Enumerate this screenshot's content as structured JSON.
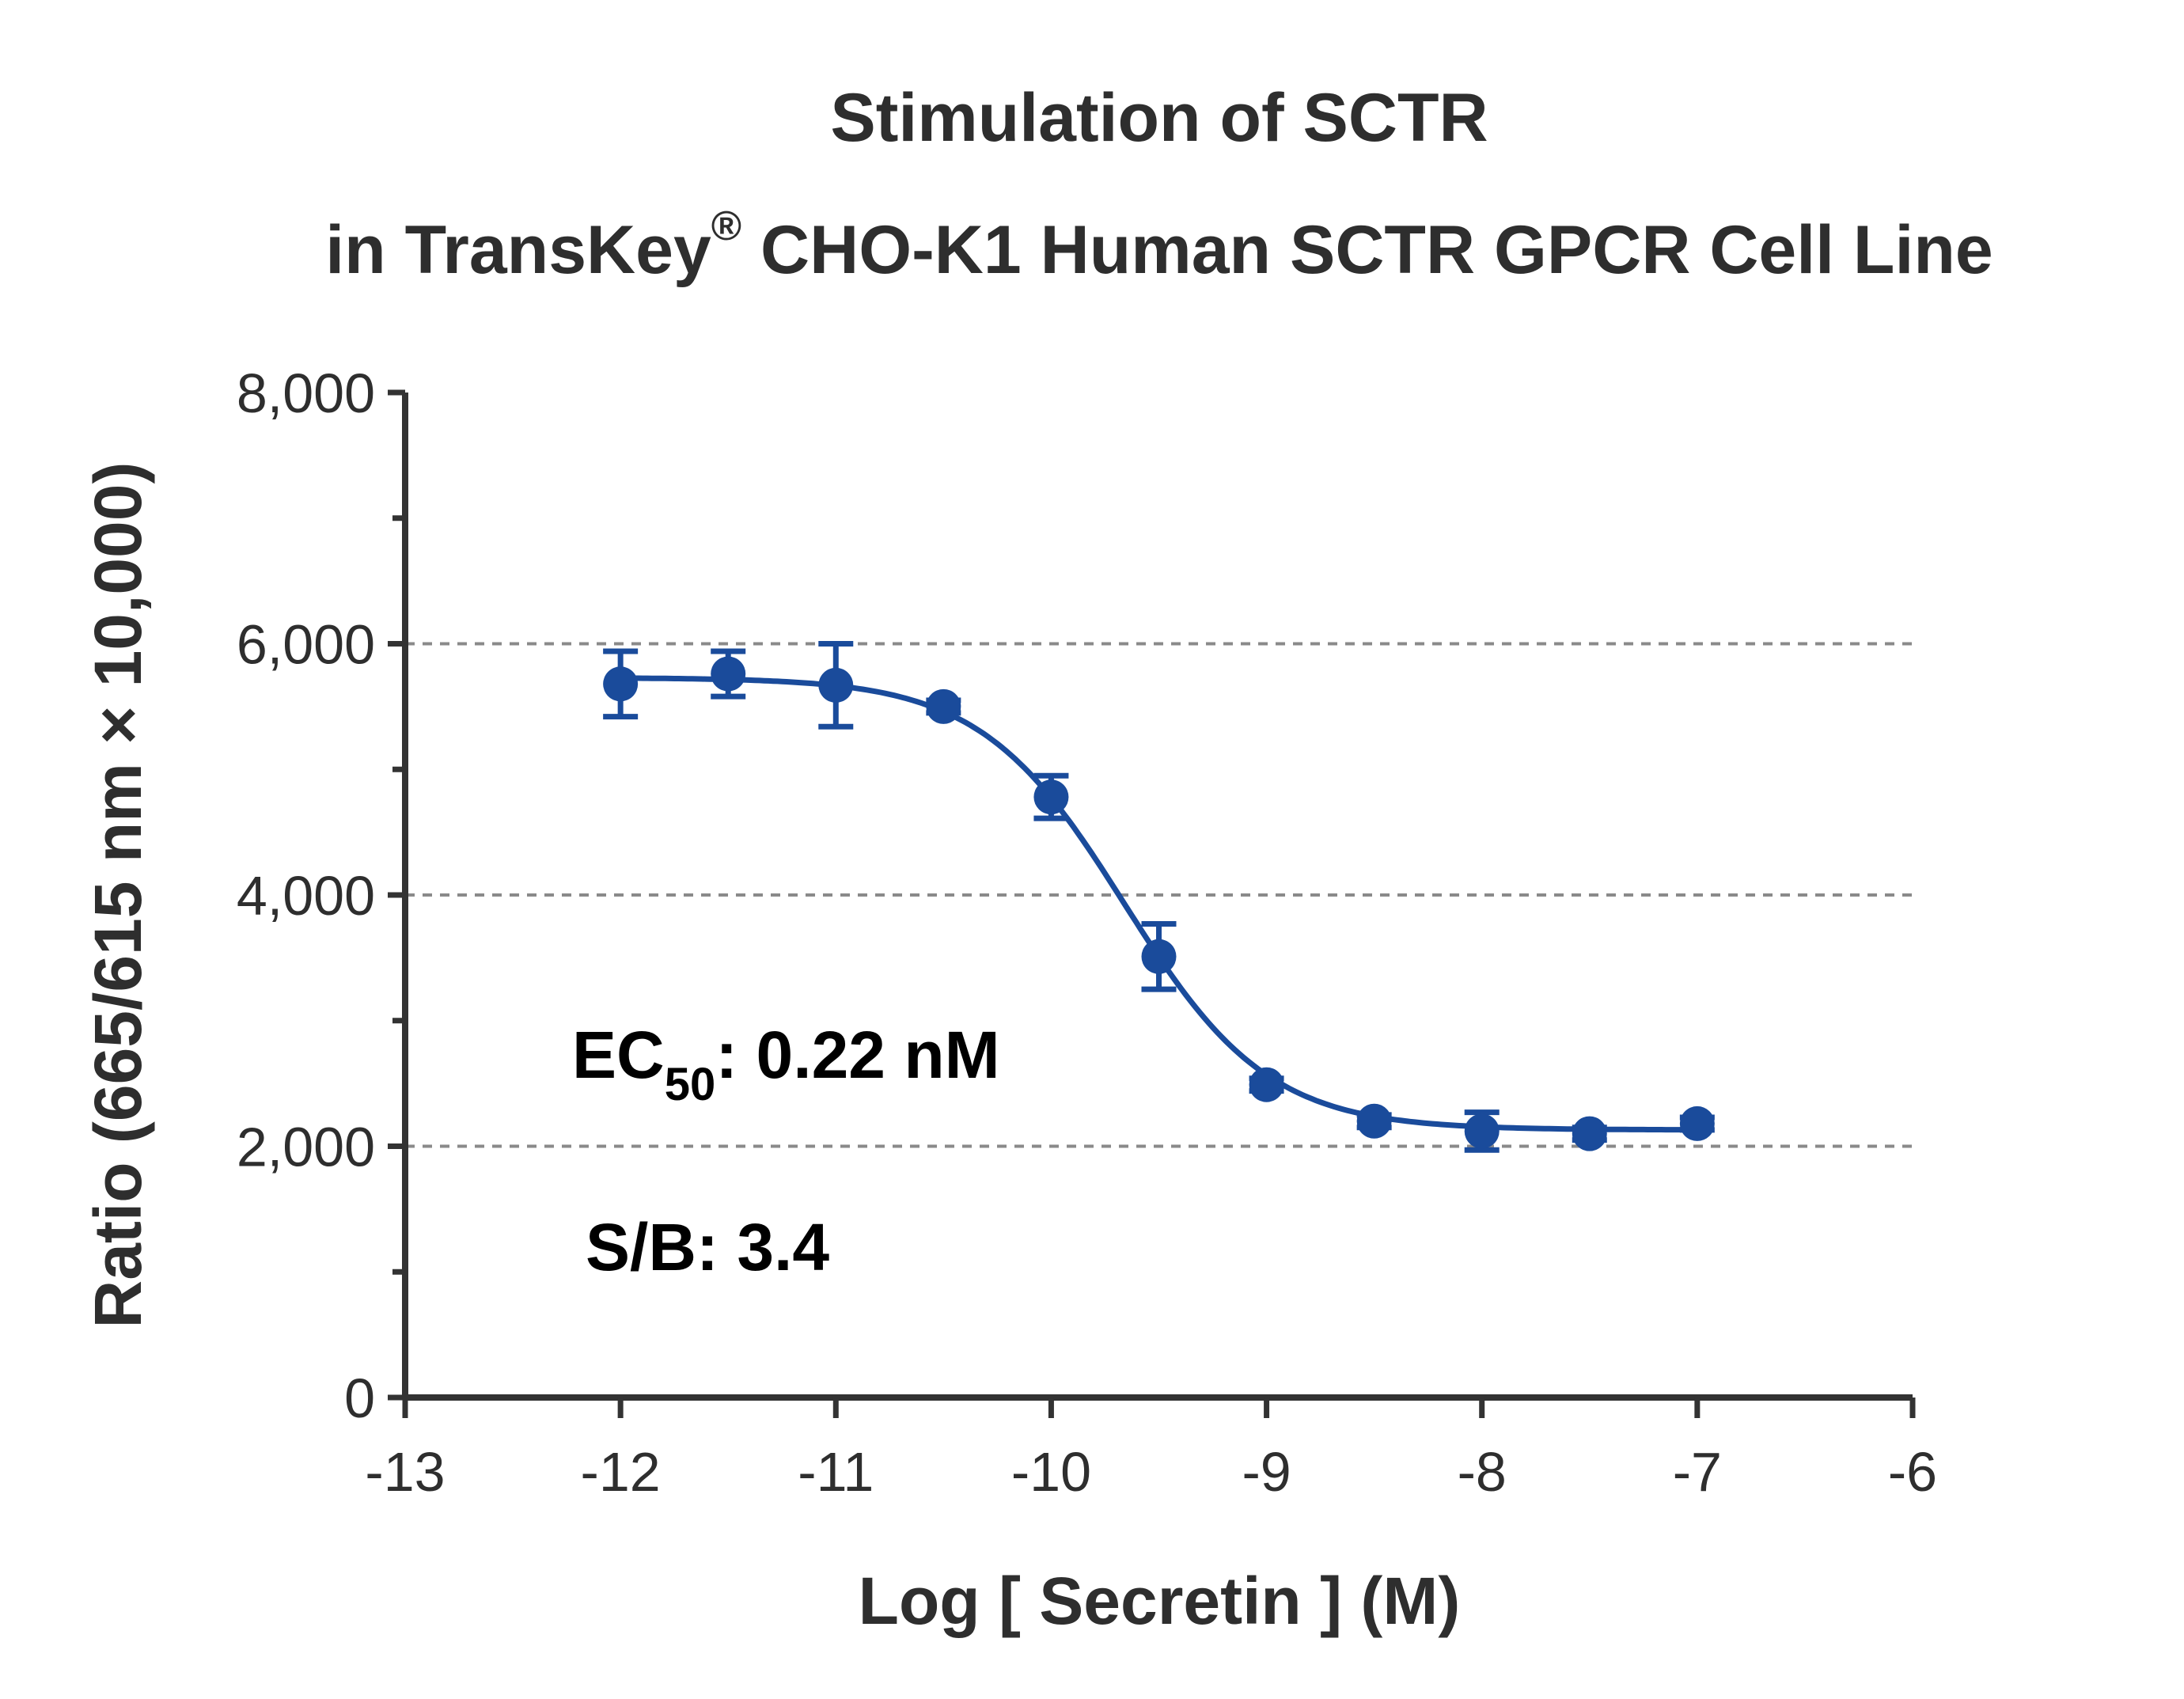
{
  "chart_data": {
    "type": "scatter",
    "title_line1": "Stimulation of  SCTR",
    "title_line2_main": "in TransKey",
    "title_line2_sup": "®",
    "title_line2_rest": " CHO-K1 Human SCTR GPCR Cell Line",
    "xlabel": "Log [ Secretin ]  (M)",
    "ylabel": "Ratio (665/615 nm × 10,000)",
    "xlim": [
      -13,
      -6
    ],
    "ylim": [
      0,
      8000
    ],
    "xticks": [
      "-13",
      "-12",
      "-11",
      "-10",
      "-9",
      "-8",
      "-7",
      "-6"
    ],
    "yticks": [
      "0",
      "2,000",
      "4,000",
      "6,000",
      "8,000"
    ],
    "grid_y": [
      2000,
      4000,
      6000
    ],
    "series": [
      {
        "color": "#1a4b9b",
        "x": [
          -12,
          -11.5,
          -11,
          -10.5,
          -10,
          -9.5,
          -9,
          -8.5,
          -8,
          -7.5,
          -7
        ],
        "y": [
          5680,
          5760,
          5670,
          5500,
          4780,
          3510,
          2490,
          2200,
          2120,
          2100,
          2180
        ],
        "error": [
          260,
          180,
          330,
          50,
          170,
          260,
          50,
          50,
          150,
          50,
          50
        ]
      }
    ],
    "fit": {
      "bottom": 2130,
      "top": 5730,
      "log_ec50": -9.66,
      "hill_slope": -1.3
    },
    "annotation_ec50_main": "EC",
    "annotation_ec50_sub": "50",
    "annotation_ec50_rest": ": 0.22 nM",
    "annotation_sb": "S/B: 3.4"
  }
}
